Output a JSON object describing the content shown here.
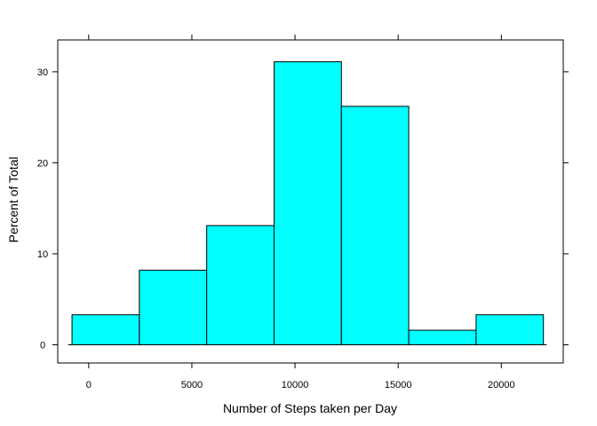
{
  "chart_data": {
    "type": "bar",
    "subtype": "histogram",
    "title": "",
    "xlabel": "Number of Steps taken per Day",
    "ylabel": "Percent of Total",
    "xlim": [
      -1500,
      23000
    ],
    "ylim": [
      -2,
      33.5
    ],
    "xticks": [
      0,
      5000,
      10000,
      15000,
      20000
    ],
    "yticks": [
      0,
      10,
      20,
      30
    ],
    "baseline": [
      -1000,
      22200
    ],
    "bins": [
      {
        "x0": -808,
        "x1": 2456,
        "value": 3.3
      },
      {
        "x0": 2456,
        "x1": 5720,
        "value": 8.2
      },
      {
        "x0": 5720,
        "x1": 8984,
        "value": 13.1
      },
      {
        "x0": 8984,
        "x1": 12248,
        "value": 31.1
      },
      {
        "x0": 12248,
        "x1": 15512,
        "value": 26.2
      },
      {
        "x0": 15512,
        "x1": 18776,
        "value": 1.6
      },
      {
        "x0": 18776,
        "x1": 22040,
        "value": 3.3
      }
    ],
    "colors": {
      "bar_fill": "#00FFFF",
      "bar_stroke": "#000000",
      "frame": "#000000"
    },
    "grid": false,
    "legend": "none"
  }
}
